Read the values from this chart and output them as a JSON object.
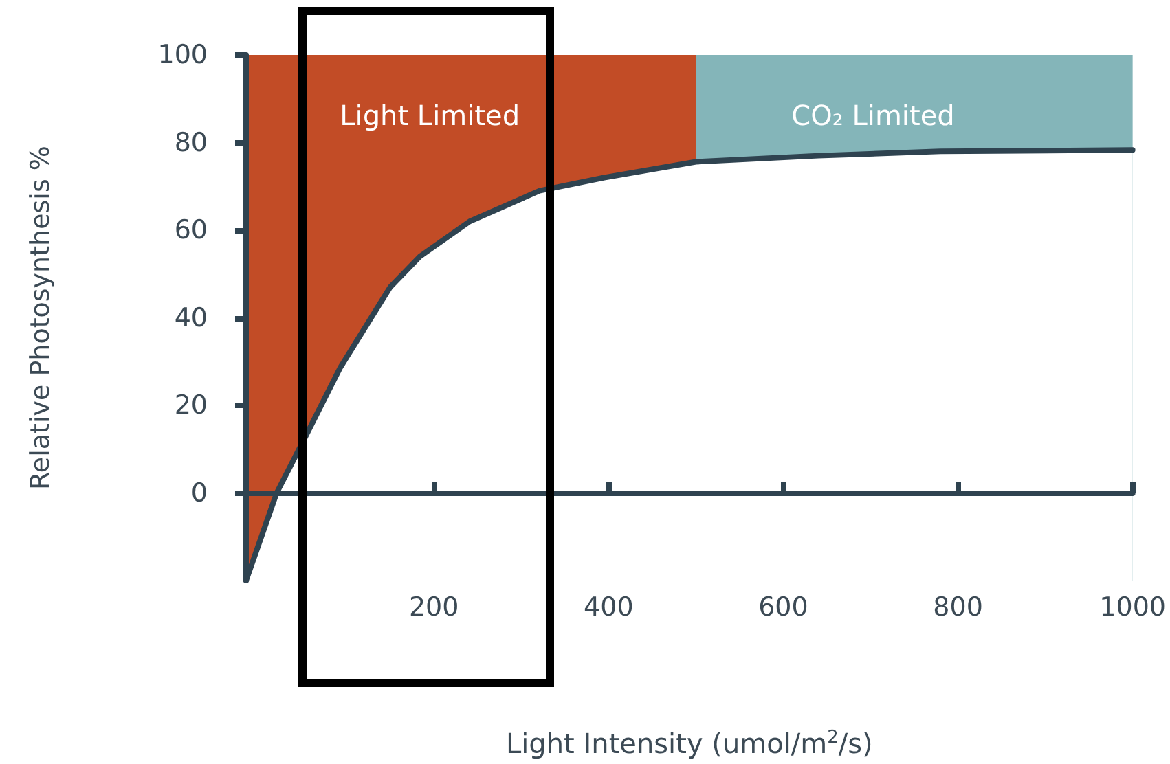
{
  "chart_data": {
    "type": "line",
    "xlabel": "Light Intensity (umol/m$^{2}$/s)",
    "ylabel": "Relative Photosynthesis %",
    "x": [
      -15,
      20,
      52,
      93,
      150,
      184,
      241,
      321,
      395,
      500,
      640,
      780,
      1000
    ],
    "series": [
      {
        "color": "#2f4350",
        "values": [
          -20,
          0,
          12.5,
          28.7,
          47,
          54,
          62,
          69,
          72,
          75.6,
          77,
          78,
          78.3
        ]
      }
    ],
    "xlim": [
      -15,
      1000
    ],
    "xticks": [
      200,
      400,
      600,
      800,
      1000
    ],
    "ylim": [
      -20,
      100
    ],
    "yticks": [
      0,
      20,
      40,
      60,
      80,
      100
    ],
    "bands": [
      {
        "axis": "x",
        "from": -15,
        "to": 500,
        "label": "Light Limited",
        "color": "#c24c26"
      },
      {
        "axis": "x",
        "from": 500,
        "to": 1000,
        "label": "CO₂ Limited",
        "color": "#84b5b9"
      }
    ],
    "marker": "none",
    "line_style": "solid"
  }
}
